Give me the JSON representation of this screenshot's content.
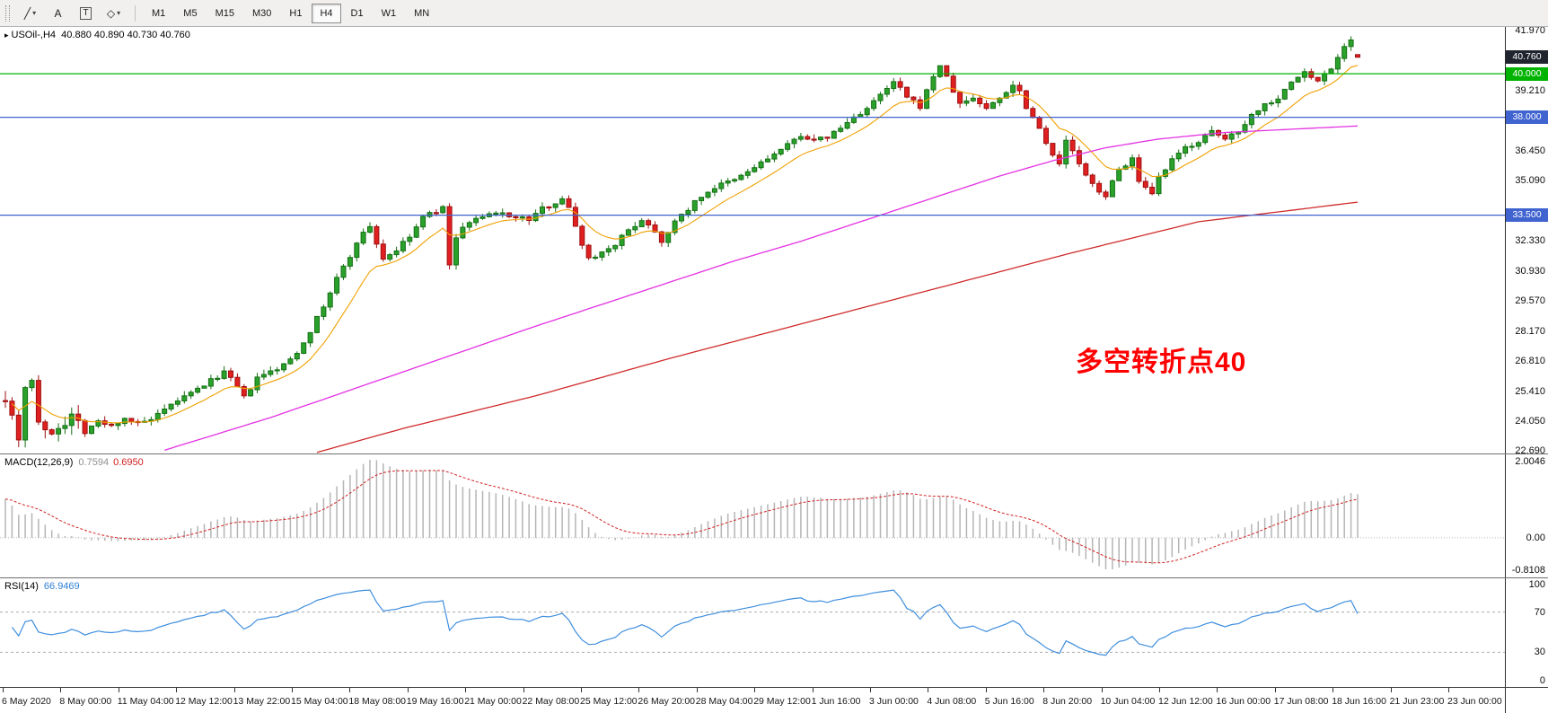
{
  "toolbar": {
    "tools": [
      {
        "name": "lines-tool",
        "glyph": "╱",
        "caret": true,
        "boxed": false
      },
      {
        "name": "text-tool",
        "glyph": "A",
        "caret": false,
        "boxed": false
      },
      {
        "name": "text-frame-tool",
        "glyph": "T",
        "caret": false,
        "boxed": true
      },
      {
        "name": "shapes-tool",
        "glyph": "◇",
        "caret": true,
        "boxed": false
      }
    ],
    "timeframes": [
      "M1",
      "M5",
      "M15",
      "M30",
      "H1",
      "H4",
      "D1",
      "W1",
      "MN"
    ],
    "active_timeframe": "H4"
  },
  "main_chart": {
    "marker": "▸",
    "symbol_period": "USOil-,H4",
    "ohlc_text": "40.880 40.890 40.730 40.760",
    "annotation": {
      "text": "多空转折点40",
      "color": "#ff0000"
    },
    "price_axis_ticks": [
      "41.970",
      "39.210",
      "36.450",
      "35.090",
      "32.330",
      "30.930",
      "29.570",
      "28.170",
      "26.810",
      "25.410",
      "24.050",
      "22.690"
    ],
    "price_tags": [
      {
        "text": "40.760",
        "price": 40.76,
        "bg": "#20242e",
        "type": "last-price"
      },
      {
        "text": "40.000",
        "price": 40.0,
        "bg": "#00b300",
        "type": "horizontal-line"
      },
      {
        "text": "38.000",
        "price": 38.0,
        "bg": "#3f63cf",
        "type": "horizontal-line"
      },
      {
        "text": "33.500",
        "price": 33.5,
        "bg": "#3f63cf",
        "type": "horizontal-line"
      }
    ]
  },
  "indicators": {
    "macd": {
      "label": "MACD(12,26,9)",
      "value_main": "0.7594",
      "value_signal": "0.6950",
      "axis_top": "2.0046",
      "axis_zero": "0.00",
      "axis_bottom": "-0.8108"
    },
    "rsi": {
      "label": "RSI(14)",
      "value": "66.9469",
      "axis_top": "100",
      "level_high": "70",
      "level_low": "30",
      "axis_bottom": "0"
    }
  },
  "time_axis": {
    "labels": [
      "6 May 2020",
      "8 May 00:00",
      "11 May 04:00",
      "12 May 12:00",
      "13 May 22:00",
      "15 May 04:00",
      "18 May 08:00",
      "19 May 16:00",
      "21 May 00:00",
      "22 May 08:00",
      "25 May 12:00",
      "26 May 20:00",
      "28 May 04:00",
      "29 May 12:00",
      "1 Jun 16:00",
      "3 Jun 00:00",
      "4 Jun 08:00",
      "5 Jun 16:00",
      "8 Jun 20:00",
      "10 Jun 04:00",
      "12 Jun 12:00",
      "16 Jun 00:00",
      "17 Jun 08:00",
      "18 Jun 16:00",
      "21 Jun 23:00",
      "23 Jun 00:00"
    ]
  },
  "chart_data": {
    "type": "candlestick",
    "symbol": "USOil-",
    "timeframe": "H4",
    "title": "USOil-,H4",
    "bars": 205,
    "y_range": [
      22.55,
      42.15
    ],
    "last_ohlc": {
      "open": 40.88,
      "high": 40.89,
      "low": 40.73,
      "close": 40.76
    },
    "close_path_anchors": [
      [
        0,
        25.2
      ],
      [
        1,
        24.3
      ],
      [
        2,
        23.3
      ],
      [
        3,
        25.7
      ],
      [
        4,
        25.9
      ],
      [
        5,
        24.1
      ],
      [
        6,
        23.4
      ],
      [
        8,
        23.8
      ],
      [
        10,
        24.3
      ],
      [
        12,
        23.7
      ],
      [
        14,
        24.0
      ],
      [
        16,
        23.8
      ],
      [
        18,
        24.2
      ],
      [
        20,
        23.9
      ],
      [
        22,
        24.1
      ],
      [
        24,
        24.5
      ],
      [
        26,
        25.0
      ],
      [
        28,
        25.3
      ],
      [
        30,
        25.7
      ],
      [
        32,
        26.1
      ],
      [
        33,
        26.3
      ],
      [
        35,
        25.6
      ],
      [
        36,
        25.1
      ],
      [
        38,
        26.0
      ],
      [
        40,
        26.3
      ],
      [
        42,
        26.6
      ],
      [
        44,
        27.2
      ],
      [
        46,
        28.2
      ],
      [
        48,
        29.3
      ],
      [
        50,
        30.6
      ],
      [
        52,
        31.6
      ],
      [
        53,
        32.3
      ],
      [
        55,
        33.0
      ],
      [
        56,
        32.2
      ],
      [
        57,
        31.5
      ],
      [
        59,
        31.9
      ],
      [
        61,
        32.5
      ],
      [
        63,
        33.4
      ],
      [
        65,
        33.7
      ],
      [
        66,
        33.8
      ],
      [
        67,
        31.3
      ],
      [
        68,
        32.4
      ],
      [
        69,
        33.0
      ],
      [
        71,
        33.3
      ],
      [
        73,
        33.5
      ],
      [
        75,
        33.6
      ],
      [
        77,
        33.4
      ],
      [
        79,
        33.3
      ],
      [
        81,
        33.8
      ],
      [
        83,
        34.1
      ],
      [
        84,
        34.3
      ],
      [
        85,
        33.8
      ],
      [
        86,
        33.0
      ],
      [
        87,
        32.2
      ],
      [
        88,
        31.5
      ],
      [
        90,
        31.8
      ],
      [
        92,
        32.2
      ],
      [
        94,
        32.8
      ],
      [
        96,
        33.3
      ],
      [
        98,
        32.8
      ],
      [
        99,
        32.3
      ],
      [
        100,
        32.8
      ],
      [
        102,
        33.5
      ],
      [
        104,
        34.1
      ],
      [
        106,
        34.6
      ],
      [
        108,
        34.9
      ],
      [
        110,
        35.1
      ],
      [
        112,
        35.5
      ],
      [
        114,
        35.9
      ],
      [
        116,
        36.3
      ],
      [
        118,
        36.7
      ],
      [
        120,
        37.2
      ],
      [
        122,
        36.9
      ],
      [
        124,
        37.1
      ],
      [
        126,
        37.5
      ],
      [
        128,
        38.0
      ],
      [
        130,
        38.4
      ],
      [
        132,
        39.0
      ],
      [
        134,
        39.6
      ],
      [
        135,
        39.3
      ],
      [
        136,
        38.9
      ],
      [
        138,
        38.5
      ],
      [
        139,
        39.2
      ],
      [
        140,
        39.9
      ],
      [
        141,
        40.4
      ],
      [
        142,
        39.8
      ],
      [
        143,
        39.2
      ],
      [
        144,
        38.6
      ],
      [
        146,
        38.9
      ],
      [
        148,
        38.4
      ],
      [
        150,
        38.9
      ],
      [
        152,
        39.5
      ],
      [
        153,
        39.2
      ],
      [
        154,
        38.5
      ],
      [
        156,
        37.5
      ],
      [
        158,
        36.3
      ],
      [
        159,
        35.8
      ],
      [
        160,
        36.9
      ],
      [
        161,
        36.5
      ],
      [
        162,
        35.8
      ],
      [
        163,
        35.3
      ],
      [
        164,
        34.9
      ],
      [
        166,
        34.4
      ],
      [
        168,
        35.6
      ],
      [
        170,
        36.1
      ],
      [
        171,
        35.0
      ],
      [
        172,
        34.7
      ],
      [
        173,
        34.4
      ],
      [
        174,
        35.2
      ],
      [
        176,
        36.0
      ],
      [
        178,
        36.6
      ],
      [
        180,
        36.9
      ],
      [
        182,
        37.3
      ],
      [
        184,
        37.0
      ],
      [
        186,
        37.4
      ],
      [
        188,
        38.1
      ],
      [
        190,
        38.6
      ],
      [
        192,
        38.9
      ],
      [
        194,
        39.6
      ],
      [
        196,
        40.1
      ],
      [
        197,
        39.8
      ],
      [
        198,
        39.7
      ],
      [
        200,
        40.3
      ],
      [
        202,
        41.2
      ],
      [
        203,
        41.5
      ],
      [
        204,
        40.8
      ]
    ],
    "last_bars_override": [
      [
        202,
        40.7,
        41.4,
        40.55,
        41.25
      ],
      [
        203,
        41.25,
        41.72,
        41.05,
        41.55
      ],
      [
        204,
        40.88,
        40.89,
        40.73,
        40.76
      ]
    ],
    "volatility_profile": {
      "early_bars": 14,
      "early": 0.5,
      "normal": 0.2
    },
    "colors": {
      "up": "#2aa12a",
      "up_stroke": "#147014",
      "down": "#e02020",
      "down_stroke": "#9e0f0f",
      "ma_fast": "#f0a000",
      "ma_medium": "#e332e3",
      "ma_slow": "#d02a2a",
      "macd_hist": "#b5b5b5",
      "macd_signal": "#d22222",
      "rsi_line": "#3f8ede"
    },
    "moving_averages": {
      "fast": {
        "type": "ema",
        "period": 10
      },
      "medium_anchors": [
        [
          24,
          22.7
        ],
        [
          40,
          24.2
        ],
        [
          60,
          26.3
        ],
        [
          80,
          28.4
        ],
        [
          100,
          30.4
        ],
        [
          110,
          31.4
        ],
        [
          120,
          32.3
        ],
        [
          130,
          33.3
        ],
        [
          140,
          34.3
        ],
        [
          150,
          35.3
        ],
        [
          158,
          36.0
        ],
        [
          166,
          36.6
        ],
        [
          174,
          37.0
        ],
        [
          184,
          37.3
        ],
        [
          194,
          37.45
        ],
        [
          204,
          37.6
        ]
      ],
      "slow_anchors": [
        [
          47,
          22.6
        ],
        [
          60,
          23.7
        ],
        [
          80,
          25.2
        ],
        [
          100,
          26.9
        ],
        [
          120,
          28.5
        ],
        [
          140,
          30.1
        ],
        [
          160,
          31.7
        ],
        [
          180,
          33.2
        ],
        [
          204,
          34.1
        ]
      ]
    },
    "horizontal_lines": [
      {
        "price": 40.0,
        "color": "#00b300"
      },
      {
        "price": 38.0,
        "color": "#3f63cf"
      },
      {
        "price": 33.5,
        "color": "#3f63cf"
      }
    ],
    "indicator_params": {
      "macd": [
        12,
        26,
        9
      ],
      "rsi": 14
    },
    "indicator_axis": {
      "macd": [
        "2.0046",
        "0.00",
        "-0.8108"
      ],
      "rsi": [
        "100",
        "70",
        "30",
        "0"
      ]
    }
  }
}
